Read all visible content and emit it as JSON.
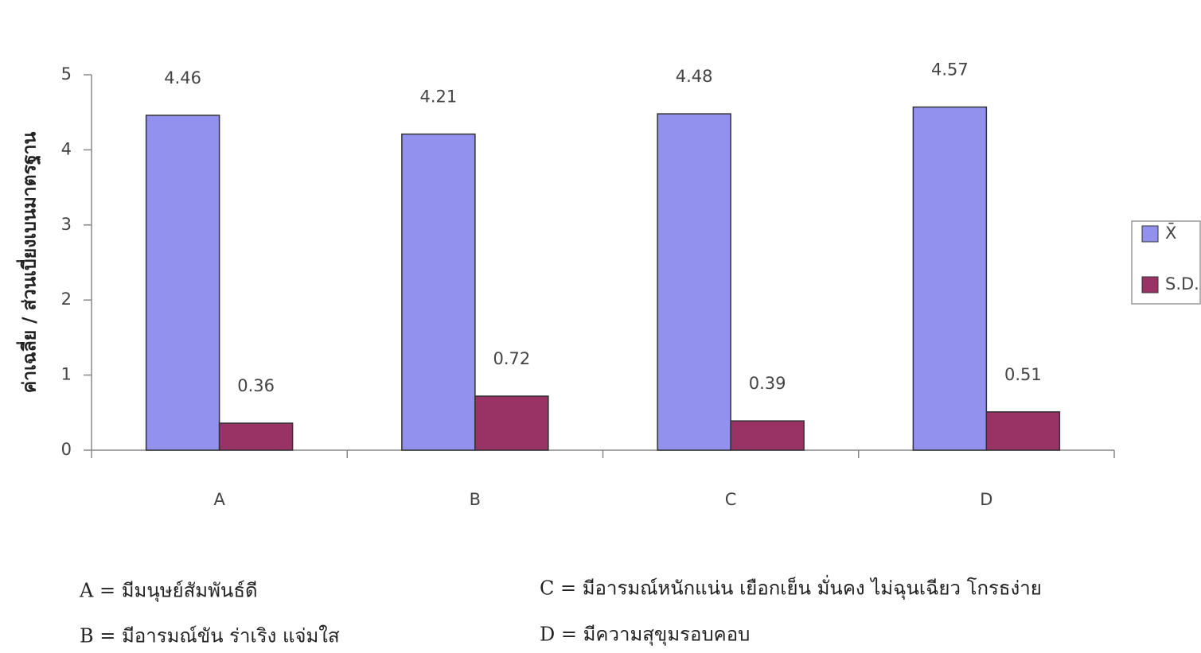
{
  "chart_data": {
    "type": "bar",
    "y_label": "ค่าเฉลี่ย / ส่วนเบี่ยงเบนมาตรฐาน",
    "categories": [
      "A",
      "B",
      "C",
      "D"
    ],
    "series": [
      {
        "name": "X̄",
        "color": "#9292ee",
        "values": [
          4.46,
          4.21,
          4.48,
          4.57
        ]
      },
      {
        "name": "S.D.",
        "color": "#993366",
        "values": [
          0.36,
          0.72,
          0.39,
          0.51
        ]
      }
    ],
    "ylim": [
      0,
      5
    ],
    "yticks": [
      0,
      1,
      2,
      3,
      4,
      5
    ],
    "grid": false,
    "legend": "right",
    "notes": [
      "A = มีมนุษย์สัมพันธ์ดี",
      "B = มีอารมณ์ขัน ร่าเริง แจ่มใส",
      "C = มีอารมณ์หนักแน่น เยือกเย็น มั่นคง ไม่ฉุนเฉียว โกรธง่าย",
      "D = มีความสุขุมรอบคอบ"
    ]
  }
}
